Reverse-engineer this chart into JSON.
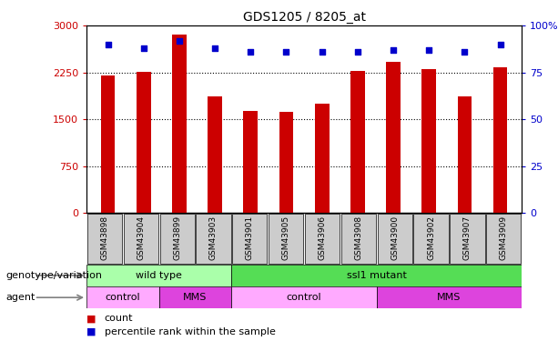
{
  "title": "GDS1205 / 8205_at",
  "samples": [
    "GSM43898",
    "GSM43904",
    "GSM43899",
    "GSM43903",
    "GSM43901",
    "GSM43905",
    "GSM43906",
    "GSM43908",
    "GSM43900",
    "GSM43902",
    "GSM43907",
    "GSM43909"
  ],
  "counts": [
    2200,
    2260,
    2850,
    1870,
    1640,
    1620,
    1750,
    2270,
    2420,
    2300,
    1870,
    2340
  ],
  "percentile_ranks": [
    90,
    88,
    92,
    88,
    86,
    86,
    86,
    86,
    87,
    87,
    86,
    90
  ],
  "ylim_left": [
    0,
    3000
  ],
  "ylim_right": [
    0,
    100
  ],
  "yticks_left": [
    0,
    750,
    1500,
    2250,
    3000
  ],
  "yticks_right": [
    0,
    25,
    50,
    75,
    100
  ],
  "bar_color": "#CC0000",
  "dot_color": "#0000CC",
  "genotype_row": [
    {
      "label": "wild type",
      "span": [
        0,
        4
      ],
      "color": "#AAFFAA"
    },
    {
      "label": "ssl1 mutant",
      "span": [
        4,
        12
      ],
      "color": "#55DD55"
    }
  ],
  "agent_row": [
    {
      "label": "control",
      "span": [
        0,
        2
      ],
      "color": "#FFAAFF"
    },
    {
      "label": "MMS",
      "span": [
        2,
        4
      ],
      "color": "#DD44DD"
    },
    {
      "label": "control",
      "span": [
        4,
        8
      ],
      "color": "#FFAAFF"
    },
    {
      "label": "MMS",
      "span": [
        8,
        12
      ],
      "color": "#DD44DD"
    }
  ],
  "left_label_geno": "genotype/variation",
  "left_label_agent": "agent",
  "legend_count_color": "#CC0000",
  "legend_dot_color": "#0000CC",
  "xtick_bg": "#CCCCCC",
  "bar_width": 0.4
}
